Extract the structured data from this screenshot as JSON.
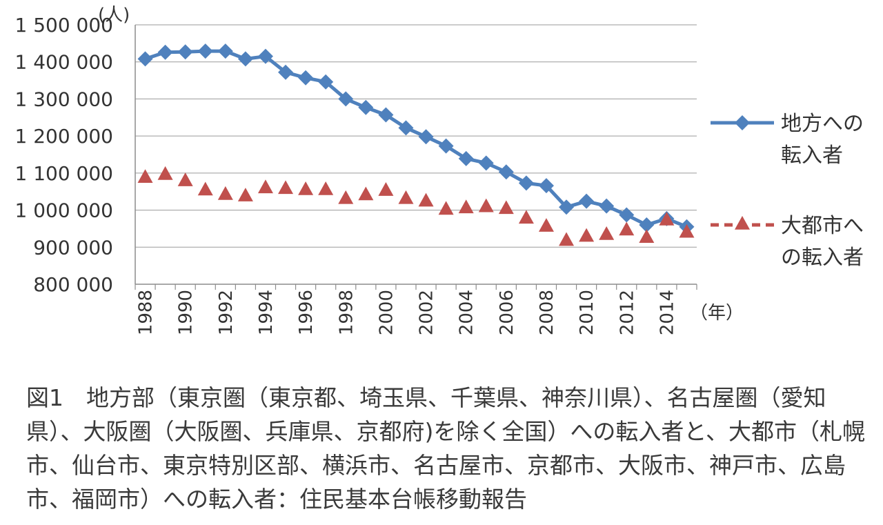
{
  "chart_data": {
    "type": "line",
    "unit_label": "(人)",
    "x_unit_label": "（年）",
    "x": [
      1988,
      1989,
      1990,
      1991,
      1992,
      1993,
      1994,
      1995,
      1996,
      1997,
      1998,
      1999,
      2000,
      2001,
      2002,
      2003,
      2004,
      2005,
      2006,
      2007,
      2008,
      2009,
      2010,
      2011,
      2012,
      2013,
      2014,
      2015
    ],
    "x_tick_labels": [
      "1988",
      "1990",
      "1992",
      "1994",
      "1996",
      "1998",
      "2000",
      "2002",
      "2004",
      "2006",
      "2008",
      "2010",
      "2012",
      "2014"
    ],
    "y_tick_labels": [
      "1 500 000",
      "1 400 000",
      "1 300 000",
      "1 200 000",
      "1 100 000",
      "1 000 000",
      "900 000",
      "800 000"
    ],
    "ylim": [
      800000,
      1500000
    ],
    "grid": true,
    "legend_position": "right",
    "series": [
      {
        "name_lines": [
          "地方への",
          "転入者"
        ],
        "color": "#4f81bd",
        "marker": "diamond",
        "values": [
          1408000,
          1426000,
          1427000,
          1429000,
          1429000,
          1408000,
          1415000,
          1372000,
          1357000,
          1346000,
          1300000,
          1277000,
          1257000,
          1222000,
          1198000,
          1173000,
          1139000,
          1127000,
          1103000,
          1073000,
          1066000,
          1008000,
          1024000,
          1011000,
          987000,
          960000,
          977000,
          955000
        ]
      },
      {
        "name_lines": [
          "大都市へ",
          "の転入者"
        ],
        "color": "#c0504d",
        "marker": "triangle",
        "dashed_legend": true,
        "values": [
          1090000,
          1098000,
          1081000,
          1056000,
          1044000,
          1040000,
          1062000,
          1060000,
          1057000,
          1057000,
          1033000,
          1043000,
          1055000,
          1033000,
          1026000,
          1004000,
          1008000,
          1011000,
          1006000,
          980000,
          958000,
          920000,
          931000,
          936000,
          948000,
          928000,
          975000,
          942000
        ]
      }
    ]
  },
  "caption_lines": [
    "図1　地方部（東京圏（東京都、埼玉県、千葉県、神奈川県）、名古屋圏（愛知",
    "県）、大阪圏（大阪圏、兵庫県、京都府)を除く全国）への転入者と、大都市（札幌",
    "市、仙台市、東京特別区部、横浜市、名古屋市、京都市、大阪市、神戸市、広島",
    "市、福岡市）への転入者：住民基本台帳移動報告"
  ]
}
